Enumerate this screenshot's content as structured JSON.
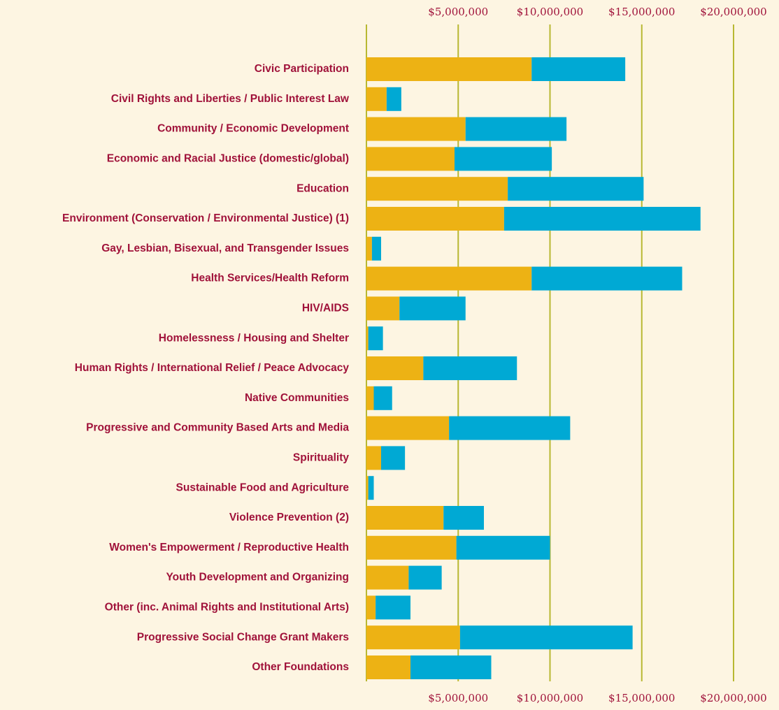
{
  "chart_data": {
    "type": "stacked-barh",
    "categories": [
      "Civic Participation",
      "Civil Rights and Liberties / Public Interest Law",
      "Community / Economic Development",
      "Economic and Racial Justice (domestic/global)",
      "Education",
      "Environment (Conservation / Environmental Justice) (1)",
      "Gay, Lesbian, Bisexual, and Transgender Issues",
      "Health Services/Health Reform",
      "HIV/AIDS",
      "Homelessness / Housing and Shelter",
      "Human Rights / International Relief / Peace Advocacy",
      "Native Communities",
      "Progressive and Community Based Arts and Media",
      "Spirituality",
      "Sustainable Food and Agriculture",
      "Violence Prevention (2)",
      "Women's Empowerment / Reproductive Health",
      "Youth Development and Organizing",
      "Other (inc. Animal Rights and Institutional Arts)",
      "Progressive Social Change Grant Makers",
      "Other Foundations"
    ],
    "series": [
      {
        "color": "#edb214",
        "values": [
          9000000,
          1100000,
          5400000,
          4800000,
          7700000,
          7500000,
          300000,
          9000000,
          1800000,
          100000,
          3100000,
          400000,
          4500000,
          800000,
          100000,
          4200000,
          4900000,
          2300000,
          500000,
          5100000,
          2400000
        ]
      },
      {
        "color": "#00a9d4",
        "values": [
          5100000,
          800000,
          5500000,
          5300000,
          7400000,
          10700000,
          500000,
          8200000,
          3600000,
          800000,
          5100000,
          1000000,
          6600000,
          1300000,
          300000,
          2200000,
          5100000,
          1800000,
          1900000,
          9400000,
          4400000
        ]
      }
    ],
    "xlim": [
      0,
      20000000
    ],
    "xticks": [
      {
        "value": 5000000,
        "label": "$5,000,000"
      },
      {
        "value": 10000000,
        "label": "$10,000,000"
      },
      {
        "value": 15000000,
        "label": "$15,000,000"
      },
      {
        "value": 20000000,
        "label": "$20,000,000"
      }
    ],
    "grid": true
  }
}
